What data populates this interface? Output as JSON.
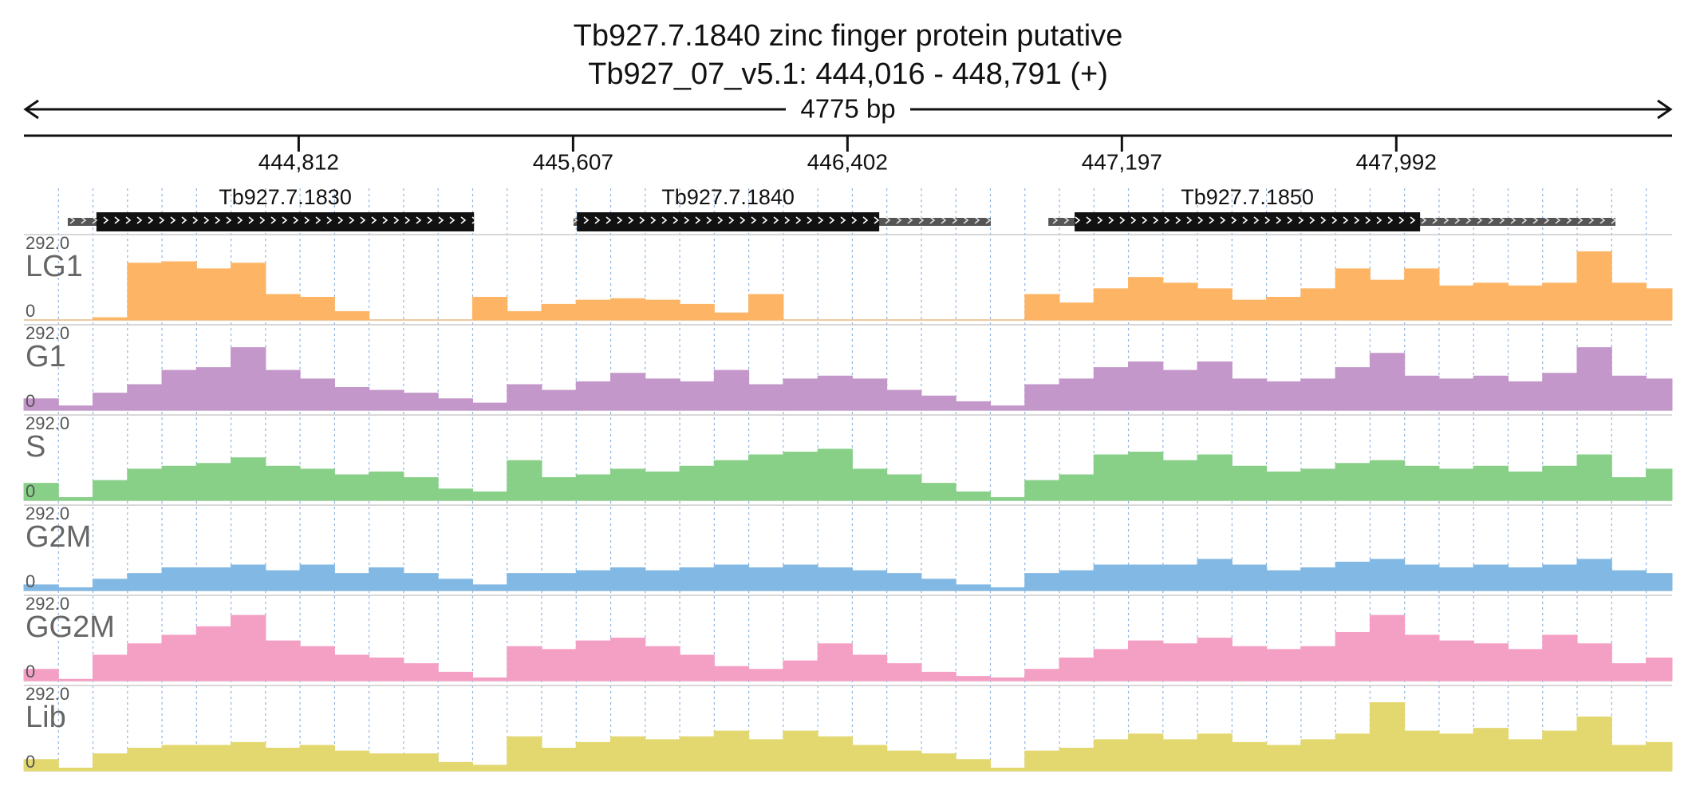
{
  "chart_data": {
    "type": "coverage",
    "title": "Tb927.7.1840  zinc finger protein  putative",
    "subtitle": "Tb927_07_v5.1: 444,016 - 448,791 (+)",
    "span_label": "4775 bp",
    "xlim": [
      444016,
      448791
    ],
    "xticks": [
      {
        "value": 444812,
        "label": "444,812"
      },
      {
        "value": 445607,
        "label": "445,607"
      },
      {
        "value": 446402,
        "label": "446,402"
      },
      {
        "value": 447197,
        "label": "447,197"
      },
      {
        "value": 447992,
        "label": "447,992"
      }
    ],
    "genes": [
      {
        "name": "Tb927.7.1830",
        "transcript": [
          444143,
          445320
        ],
        "cds": [
          444226,
          445320
        ]
      },
      {
        "name": "Tb927.7.1840",
        "transcript": [
          445608,
          446817
        ],
        "cds": [
          445618,
          446494
        ]
      },
      {
        "name": "Tb927.7.1850",
        "transcript": [
          446984,
          448627
        ],
        "cds": [
          447060,
          448061
        ]
      }
    ],
    "ylim": [
      0,
      292
    ],
    "yticks": [
      {
        "value": 292,
        "label": "292.0"
      },
      0
    ],
    "x": [
      444066,
      444166,
      444266,
      444366,
      444466,
      444566,
      444666,
      444766,
      444866,
      444966,
      445066,
      445166,
      445266,
      445366,
      445466,
      445566,
      445666,
      445766,
      445866,
      445966,
      446066,
      446166,
      446266,
      446366,
      446466,
      446566,
      446666,
      446766,
      446866,
      446966,
      447066,
      447166,
      447266,
      447366,
      447466,
      447566,
      447666,
      447766,
      447866,
      447966,
      448066,
      448166,
      448266,
      448366,
      448466,
      448566,
      448666,
      448766
    ],
    "series": [
      {
        "name": "LG1",
        "color": "#fdb565",
        "values": [
          0,
          0,
          8,
          200,
          205,
          180,
          200,
          90,
          80,
          30,
          0,
          0,
          0,
          80,
          30,
          55,
          70,
          75,
          70,
          55,
          25,
          90,
          0,
          0,
          0,
          0,
          0,
          0,
          0,
          90,
          60,
          110,
          150,
          130,
          110,
          70,
          80,
          110,
          180,
          140,
          180,
          120,
          130,
          120,
          130,
          240,
          130,
          110
        ]
      },
      {
        "name": "G1",
        "color": "#c397c9",
        "values": [
          40,
          15,
          60,
          90,
          140,
          150,
          220,
          140,
          110,
          80,
          70,
          60,
          40,
          25,
          90,
          70,
          100,
          130,
          110,
          100,
          140,
          90,
          110,
          120,
          110,
          70,
          50,
          30,
          15,
          90,
          110,
          150,
          170,
          140,
          170,
          110,
          100,
          110,
          150,
          200,
          120,
          110,
          120,
          100,
          130,
          220,
          120,
          110
        ]
      },
      {
        "name": "S",
        "color": "#88d088",
        "values": [
          60,
          10,
          70,
          110,
          120,
          130,
          150,
          120,
          110,
          90,
          100,
          80,
          40,
          30,
          140,
          80,
          90,
          110,
          100,
          120,
          140,
          160,
          170,
          180,
          110,
          90,
          60,
          30,
          10,
          70,
          90,
          160,
          170,
          140,
          160,
          120,
          100,
          110,
          130,
          140,
          120,
          110,
          120,
          100,
          120,
          160,
          80,
          110
        ]
      },
      {
        "name": "G2M",
        "color": "#82b8e4",
        "values": [
          20,
          10,
          40,
          60,
          80,
          80,
          90,
          70,
          90,
          60,
          80,
          60,
          40,
          20,
          60,
          60,
          70,
          80,
          70,
          80,
          90,
          80,
          90,
          80,
          70,
          60,
          40,
          20,
          10,
          60,
          70,
          90,
          90,
          90,
          110,
          90,
          70,
          80,
          100,
          110,
          90,
          80,
          90,
          80,
          90,
          110,
          70,
          60
        ]
      },
      {
        "name": "GG2M",
        "color": "#f49fc4",
        "values": [
          40,
          5,
          90,
          130,
          160,
          190,
          230,
          140,
          120,
          90,
          80,
          60,
          30,
          10,
          120,
          110,
          140,
          150,
          120,
          90,
          50,
          40,
          70,
          130,
          90,
          60,
          30,
          15,
          10,
          40,
          80,
          110,
          140,
          130,
          150,
          120,
          110,
          120,
          170,
          230,
          160,
          140,
          130,
          110,
          160,
          130,
          60,
          80
        ]
      },
      {
        "name": "Lib",
        "color": "#e3d870",
        "values": [
          40,
          10,
          60,
          80,
          90,
          90,
          100,
          80,
          90,
          70,
          60,
          60,
          30,
          20,
          120,
          80,
          100,
          120,
          110,
          120,
          140,
          110,
          140,
          120,
          90,
          70,
          60,
          40,
          10,
          70,
          80,
          110,
          130,
          110,
          130,
          100,
          90,
          110,
          130,
          240,
          140,
          130,
          150,
          110,
          140,
          190,
          90,
          100
        ]
      }
    ]
  }
}
